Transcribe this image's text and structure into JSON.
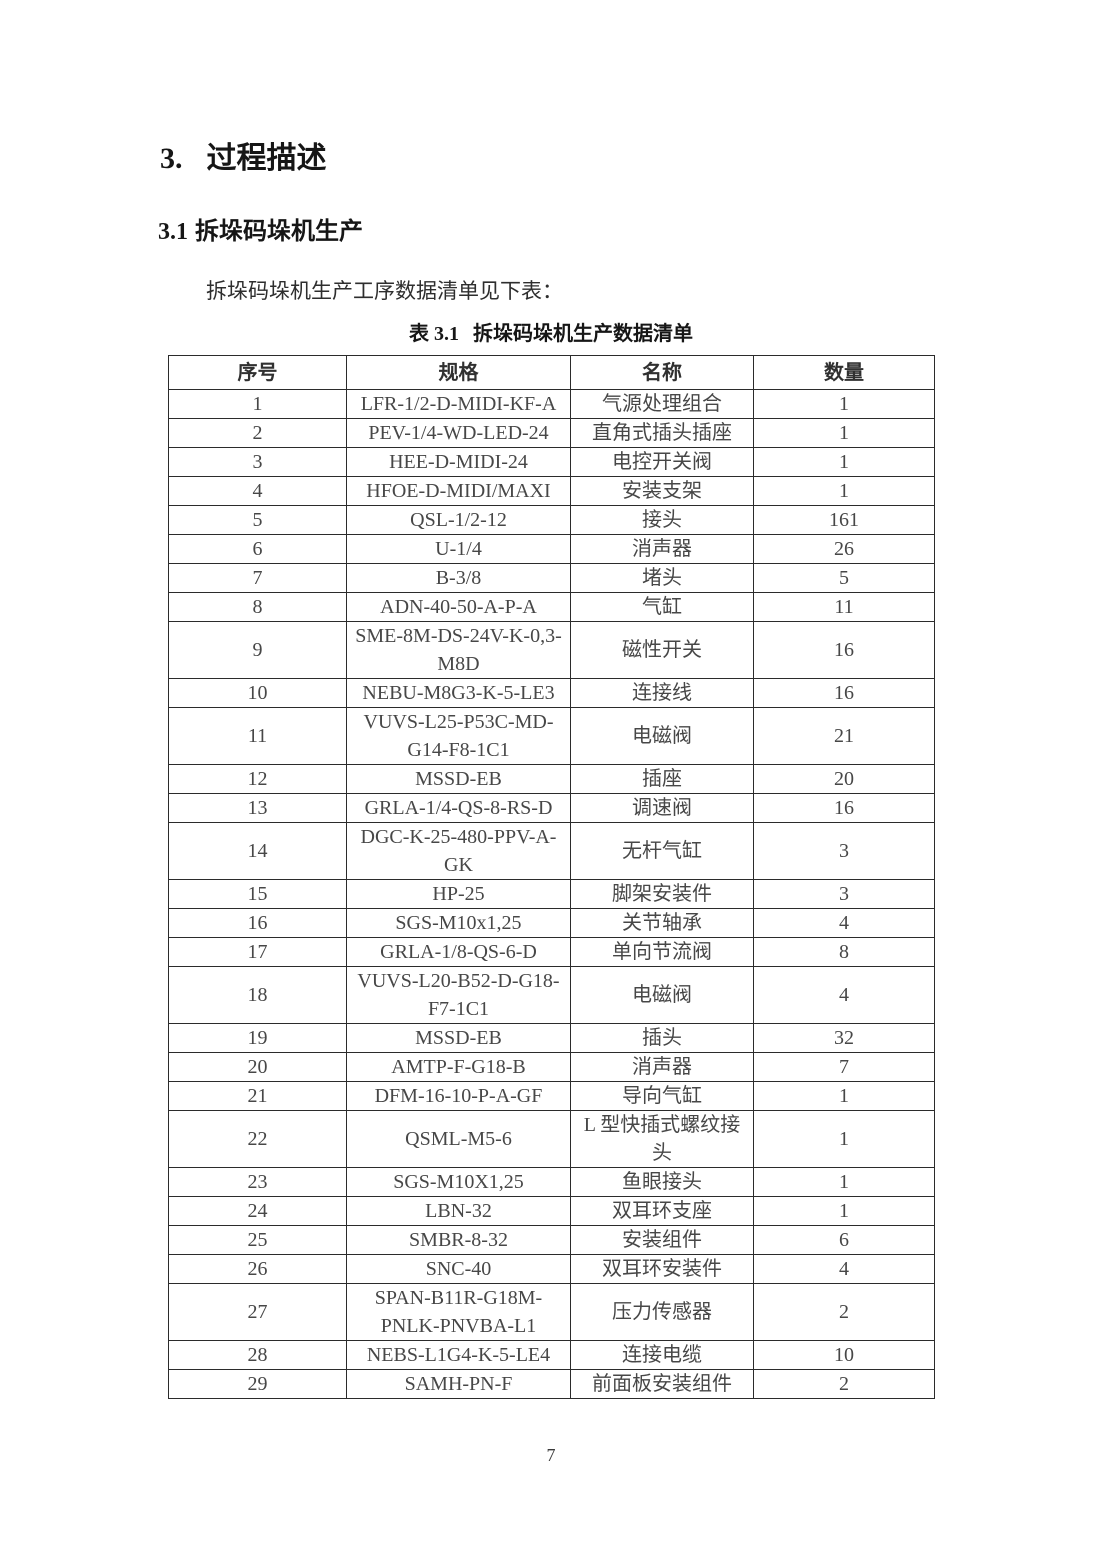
{
  "heading": {
    "number": "3.",
    "title": "过程描述"
  },
  "subheading": {
    "number": "3.1",
    "title": "拆垛码垛机生产"
  },
  "paragraph": "拆垛码垛机生产工序数据清单见下表：",
  "table": {
    "caption": {
      "label": "表 3.1",
      "title": "拆垛码垛机生产数据清单"
    },
    "columns": [
      "序号",
      "规格",
      "名称",
      "数量"
    ],
    "rows": [
      {
        "seq": "1",
        "spec": "LFR-1/2-D-MIDI-KF-A",
        "name": "气源处理组合",
        "qty": "1"
      },
      {
        "seq": "2",
        "spec": "PEV-1/4-WD-LED-24",
        "name": "直角式插头插座",
        "qty": "1"
      },
      {
        "seq": "3",
        "spec": "HEE-D-MIDI-24",
        "name": "电控开关阀",
        "qty": "1"
      },
      {
        "seq": "4",
        "spec": "HFOE-D-MIDI/MAXI",
        "name": "安装支架",
        "qty": "1"
      },
      {
        "seq": "5",
        "spec": "QSL-1/2-12",
        "name": "接头",
        "qty": "161"
      },
      {
        "seq": "6",
        "spec": "U-1/4",
        "name": "消声器",
        "qty": "26"
      },
      {
        "seq": "7",
        "spec": "B-3/8",
        "name": "堵头",
        "qty": "5"
      },
      {
        "seq": "8",
        "spec": "ADN-40-50-A-P-A",
        "name": "气缸",
        "qty": "11"
      },
      {
        "seq": "9",
        "spec": "SME-8M-DS-24V-K-0,3-M8D",
        "name": "磁性开关",
        "qty": "16"
      },
      {
        "seq": "10",
        "spec": "NEBU-M8G3-K-5-LE3",
        "name": "连接线",
        "qty": "16"
      },
      {
        "seq": "11",
        "spec": "VUVS-L25-P53C-MD-G14-F8-1C1",
        "name": "电磁阀",
        "qty": "21"
      },
      {
        "seq": "12",
        "spec": "MSSD-EB",
        "name": "插座",
        "qty": "20"
      },
      {
        "seq": "13",
        "spec": "GRLA-1/4-QS-8-RS-D",
        "name": "调速阀",
        "qty": "16"
      },
      {
        "seq": "14",
        "spec": "DGC-K-25-480-PPV-A-GK",
        "name": "无杆气缸",
        "qty": "3"
      },
      {
        "seq": "15",
        "spec": "HP-25",
        "name": "脚架安装件",
        "qty": "3"
      },
      {
        "seq": "16",
        "spec": "SGS-M10x1,25",
        "name": "关节轴承",
        "qty": "4"
      },
      {
        "seq": "17",
        "spec": "GRLA-1/8-QS-6-D",
        "name": "单向节流阀",
        "qty": "8"
      },
      {
        "seq": "18",
        "spec": "VUVS-L20-B52-D-G18-F7-1C1",
        "name": "电磁阀",
        "qty": "4"
      },
      {
        "seq": "19",
        "spec": "MSSD-EB",
        "name": "插头",
        "qty": "32"
      },
      {
        "seq": "20",
        "spec": "AMTP-F-G18-B",
        "name": "消声器",
        "qty": "7"
      },
      {
        "seq": "21",
        "spec": "DFM-16-10-P-A-GF",
        "name": "导向气缸",
        "qty": "1"
      },
      {
        "seq": "22",
        "spec": "QSML-M5-6",
        "name": "L 型快插式螺纹接头",
        "qty": "1"
      },
      {
        "seq": "23",
        "spec": "SGS-M10X1,25",
        "name": "鱼眼接头",
        "qty": "1"
      },
      {
        "seq": "24",
        "spec": "LBN-32",
        "name": "双耳环支座",
        "qty": "1"
      },
      {
        "seq": "25",
        "spec": "SMBR-8-32",
        "name": "安装组件",
        "qty": "6"
      },
      {
        "seq": "26",
        "spec": "SNC-40",
        "name": "双耳环安装件",
        "qty": "4"
      },
      {
        "seq": "27",
        "spec": "SPAN-B11R-G18M-PNLK-PNVBA-L1",
        "name": "压力传感器",
        "qty": "2"
      },
      {
        "seq": "28",
        "spec": "NEBS-L1G4-K-5-LE4",
        "name": "连接电缆",
        "qty": "10"
      },
      {
        "seq": "29",
        "spec": "SAMH-PN-F",
        "name": "前面板安装组件",
        "qty": "2"
      }
    ]
  },
  "page": {
    "number": "7"
  }
}
